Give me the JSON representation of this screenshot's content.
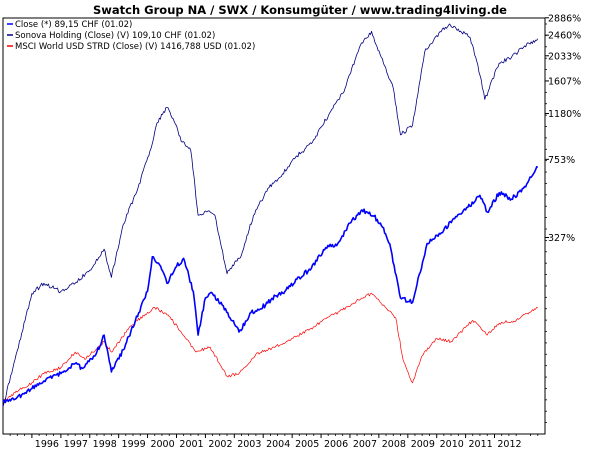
{
  "chart_data": {
    "type": "line",
    "title": "Swatch Group NA / SWX / Konsumgüter / www.trading4living.de",
    "xlabel": "",
    "ylabel": "",
    "y_scale": "log",
    "y_unit": "percent",
    "ylim": [
      -25,
      2880
    ],
    "xlim": [
      "1995-01-01",
      "2013-09-30"
    ],
    "grid": false,
    "legend_position": "top-left",
    "x_tick_labels": [
      "1996",
      "1997",
      "1998",
      "1999",
      "2000",
      "2001",
      "2002",
      "2003",
      "2004",
      "2005",
      "2006",
      "2007",
      "2008",
      "2009",
      "2010",
      "2011",
      "2012"
    ],
    "y_tick_labels": [
      "2886%",
      "2460%",
      "2033%",
      "1607%",
      "1180%",
      "753%",
      "327%"
    ],
    "y_tick_values": [
      2886,
      2460,
      2033,
      1607,
      1180,
      753,
      327
    ],
    "series": [
      {
        "name": "Close (*) 89,15 CHF (01.02)",
        "color": "#0000ff",
        "points": [
          [
            "1995-01-01",
            0
          ],
          [
            "1995-06-01",
            2
          ],
          [
            "1996-01-01",
            12
          ],
          [
            "1996-06-01",
            20
          ],
          [
            "1997-01-01",
            28
          ],
          [
            "1997-07-01",
            40
          ],
          [
            "1997-10-01",
            34
          ],
          [
            "1998-04-01",
            55
          ],
          [
            "1998-07-01",
            80
          ],
          [
            "1998-10-01",
            30
          ],
          [
            "1999-03-01",
            58
          ],
          [
            "1999-08-01",
            105
          ],
          [
            "2000-01-01",
            165
          ],
          [
            "2000-03-01",
            260
          ],
          [
            "2000-06-01",
            235
          ],
          [
            "2000-09-01",
            185
          ],
          [
            "2001-01-01",
            230
          ],
          [
            "2001-04-01",
            255
          ],
          [
            "2001-08-01",
            165
          ],
          [
            "2001-10-01",
            80
          ],
          [
            "2002-01-01",
            150
          ],
          [
            "2002-04-01",
            160
          ],
          [
            "2002-08-01",
            135
          ],
          [
            "2003-03-01",
            85
          ],
          [
            "2003-08-01",
            120
          ],
          [
            "2004-02-01",
            135
          ],
          [
            "2004-06-01",
            155
          ],
          [
            "2004-10-01",
            165
          ],
          [
            "2005-03-01",
            195
          ],
          [
            "2005-09-01",
            225
          ],
          [
            "2006-03-01",
            290
          ],
          [
            "2006-08-01",
            305
          ],
          [
            "2007-01-01",
            385
          ],
          [
            "2007-06-01",
            445
          ],
          [
            "2007-11-01",
            415
          ],
          [
            "2008-03-01",
            365
          ],
          [
            "2008-06-01",
            285
          ],
          [
            "2008-10-01",
            150
          ],
          [
            "2009-03-01",
            140
          ],
          [
            "2009-09-01",
            305
          ],
          [
            "2010-03-01",
            345
          ],
          [
            "2010-08-01",
            405
          ],
          [
            "2011-01-01",
            445
          ],
          [
            "2011-07-01",
            520
          ],
          [
            "2011-10-01",
            435
          ],
          [
            "2012-03-01",
            535
          ],
          [
            "2012-08-01",
            500
          ],
          [
            "2013-01-01",
            560
          ],
          [
            "2013-07-01",
            695
          ]
        ]
      },
      {
        "name": "Sonova Holding (Close) (V) 109,10 CHF (01.02)",
        "color": "#000080",
        "points": [
          [
            "1995-01-01",
            -5
          ],
          [
            "1995-06-01",
            45
          ],
          [
            "1996-01-01",
            160
          ],
          [
            "1996-06-01",
            185
          ],
          [
            "1997-01-01",
            165
          ],
          [
            "1997-07-01",
            185
          ],
          [
            "1998-01-01",
            220
          ],
          [
            "1998-07-01",
            285
          ],
          [
            "1998-10-01",
            200
          ],
          [
            "1999-03-01",
            380
          ],
          [
            "1999-09-01",
            560
          ],
          [
            "2000-02-01",
            820
          ],
          [
            "2000-05-01",
            1080
          ],
          [
            "2000-09-01",
            1250
          ],
          [
            "2001-01-01",
            1050
          ],
          [
            "2001-03-01",
            900
          ],
          [
            "2001-07-01",
            820
          ],
          [
            "2001-10-01",
            420
          ],
          [
            "2002-02-01",
            440
          ],
          [
            "2002-05-01",
            420
          ],
          [
            "2002-10-01",
            210
          ],
          [
            "2003-04-01",
            265
          ],
          [
            "2003-09-01",
            420
          ],
          [
            "2004-03-01",
            560
          ],
          [
            "2004-09-01",
            650
          ],
          [
            "2005-03-01",
            780
          ],
          [
            "2005-09-01",
            880
          ],
          [
            "2006-05-01",
            1200
          ],
          [
            "2006-11-01",
            1500
          ],
          [
            "2007-05-01",
            2200
          ],
          [
            "2007-10-01",
            2550
          ],
          [
            "2008-02-01",
            2000
          ],
          [
            "2008-07-01",
            1500
          ],
          [
            "2008-10-01",
            960
          ],
          [
            "2009-03-01",
            1050
          ],
          [
            "2009-08-01",
            2100
          ],
          [
            "2010-01-01",
            2450
          ],
          [
            "2010-06-01",
            2700
          ],
          [
            "2010-10-01",
            2600
          ],
          [
            "2011-03-01",
            2400
          ],
          [
            "2011-07-01",
            1700
          ],
          [
            "2011-09-01",
            1350
          ],
          [
            "2012-03-01",
            1900
          ],
          [
            "2012-08-01",
            2000
          ],
          [
            "2013-01-01",
            2200
          ],
          [
            "2013-07-01",
            2380
          ]
        ]
      },
      {
        "name": "MSCI World USD STRD (Close) (V) 1416,788 USD (01.02)",
        "color": "#ff0000",
        "points": [
          [
            "1995-01-01",
            0
          ],
          [
            "1995-06-01",
            8
          ],
          [
            "1996-01-01",
            18
          ],
          [
            "1996-06-01",
            28
          ],
          [
            "1997-01-01",
            35
          ],
          [
            "1997-07-01",
            55
          ],
          [
            "1997-11-01",
            45
          ],
          [
            "1998-07-01",
            70
          ],
          [
            "1998-10-01",
            55
          ],
          [
            "1999-06-01",
            95
          ],
          [
            "2000-01-01",
            120
          ],
          [
            "2000-04-01",
            130
          ],
          [
            "2000-10-01",
            112
          ],
          [
            "2001-03-01",
            85
          ],
          [
            "2001-09-01",
            55
          ],
          [
            "2002-03-01",
            62
          ],
          [
            "2002-10-01",
            25
          ],
          [
            "2003-03-01",
            28
          ],
          [
            "2003-10-01",
            52
          ],
          [
            "2004-06-01",
            62
          ],
          [
            "2005-01-01",
            75
          ],
          [
            "2005-08-01",
            88
          ],
          [
            "2006-03-01",
            108
          ],
          [
            "2006-10-01",
            125
          ],
          [
            "2007-06-01",
            150
          ],
          [
            "2007-10-01",
            160
          ],
          [
            "2008-03-01",
            135
          ],
          [
            "2008-08-01",
            110
          ],
          [
            "2008-11-01",
            45
          ],
          [
            "2009-03-01",
            18
          ],
          [
            "2009-07-01",
            50
          ],
          [
            "2010-01-01",
            75
          ],
          [
            "2010-07-01",
            70
          ],
          [
            "2011-04-01",
            105
          ],
          [
            "2011-10-01",
            80
          ],
          [
            "2012-03-01",
            100
          ],
          [
            "2012-10-01",
            105
          ],
          [
            "2013-07-01",
            130
          ]
        ]
      }
    ]
  }
}
